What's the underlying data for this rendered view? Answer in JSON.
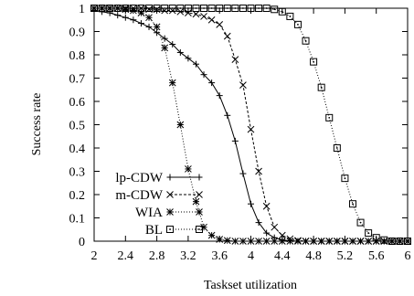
{
  "chart_data": {
    "type": "line",
    "xlabel": "Taskset utilization",
    "ylabel": "Success rate",
    "xlim": [
      2,
      6
    ],
    "ylim": [
      0,
      1
    ],
    "x_ticks": [
      "2",
      "2.4",
      "2.8",
      "3.2",
      "3.6",
      "4",
      "4.4",
      "4.8",
      "5.2",
      "5.6",
      "6"
    ],
    "y_ticks": [
      "0",
      "0.1",
      "0.2",
      "0.3",
      "0.4",
      "0.5",
      "0.6",
      "0.7",
      "0.8",
      "0.9",
      "1"
    ],
    "grid": false,
    "legend_position": "bottom-left",
    "series": [
      {
        "name": "lp-CDW",
        "marker": "plus",
        "dash": "solid",
        "x": [
          2.0,
          2.1,
          2.2,
          2.3,
          2.4,
          2.5,
          2.6,
          2.7,
          2.8,
          2.9,
          3.0,
          3.1,
          3.2,
          3.3,
          3.4,
          3.5,
          3.6,
          3.7,
          3.8,
          3.9,
          4.0,
          4.1,
          4.2,
          4.3,
          4.4,
          4.5,
          4.6,
          4.7,
          4.8,
          4.9,
          5.0,
          5.1,
          5.2,
          5.3,
          5.4,
          5.5,
          5.6,
          5.7,
          5.8,
          5.9,
          6.0
        ],
        "values": [
          0.99,
          0.985,
          0.98,
          0.97,
          0.96,
          0.95,
          0.935,
          0.92,
          0.895,
          0.87,
          0.845,
          0.81,
          0.785,
          0.76,
          0.715,
          0.68,
          0.625,
          0.54,
          0.43,
          0.29,
          0.16,
          0.08,
          0.035,
          0.015,
          0.005,
          0.002,
          0,
          0,
          0,
          0,
          0,
          0,
          0,
          0,
          0,
          0,
          0,
          0,
          0,
          0,
          0
        ]
      },
      {
        "name": "m-CDW",
        "marker": "cross",
        "dash": "dashed",
        "x": [
          2.0,
          2.1,
          2.2,
          2.3,
          2.4,
          2.5,
          2.6,
          2.7,
          2.8,
          2.9,
          3.0,
          3.1,
          3.2,
          3.3,
          3.4,
          3.5,
          3.6,
          3.7,
          3.8,
          3.9,
          4.0,
          4.1,
          4.2,
          4.3,
          4.4,
          4.5,
          4.6,
          4.7,
          4.8,
          4.9,
          5.0,
          5.1,
          5.2,
          5.3,
          5.4,
          5.5,
          5.6,
          5.7,
          5.8,
          5.9,
          6.0
        ],
        "values": [
          1,
          1,
          1,
          1,
          1,
          1,
          1,
          0.995,
          0.995,
          0.99,
          0.99,
          0.985,
          0.98,
          0.975,
          0.965,
          0.95,
          0.93,
          0.88,
          0.78,
          0.67,
          0.48,
          0.3,
          0.15,
          0.06,
          0.025,
          0.01,
          0.003,
          0,
          0,
          0,
          0,
          0,
          0,
          0,
          0,
          0,
          0,
          0,
          0,
          0,
          0
        ]
      },
      {
        "name": "WIA",
        "marker": "star",
        "dash": "dotted",
        "x": [
          2.0,
          2.1,
          2.2,
          2.3,
          2.4,
          2.5,
          2.6,
          2.7,
          2.8,
          2.9,
          3.0,
          3.1,
          3.2,
          3.3,
          3.4,
          3.5,
          3.6,
          3.7,
          3.8,
          3.9,
          4.0,
          4.1,
          4.2,
          4.3,
          4.4,
          4.5,
          4.6,
          4.7,
          4.8,
          4.9,
          5.0,
          5.1,
          5.2,
          5.3,
          5.4,
          5.5,
          5.6,
          5.7,
          5.8,
          5.9,
          6.0
        ],
        "values": [
          1,
          1,
          1,
          1,
          0.995,
          0.99,
          0.98,
          0.96,
          0.92,
          0.83,
          0.68,
          0.5,
          0.31,
          0.17,
          0.06,
          0.025,
          0.008,
          0.003,
          0,
          0,
          0,
          0,
          0,
          0,
          0,
          0,
          0,
          0,
          0,
          0,
          0,
          0,
          0,
          0,
          0,
          0,
          0,
          0,
          0,
          0,
          0
        ]
      },
      {
        "name": "BL",
        "marker": "boxdot",
        "dash": "dotted",
        "x": [
          2.0,
          2.1,
          2.2,
          2.3,
          2.4,
          2.5,
          2.6,
          2.7,
          2.8,
          2.9,
          3.0,
          3.1,
          3.2,
          3.3,
          3.4,
          3.5,
          3.6,
          3.7,
          3.8,
          3.9,
          4.0,
          4.1,
          4.2,
          4.3,
          4.4,
          4.5,
          4.6,
          4.7,
          4.8,
          4.9,
          5.0,
          5.1,
          5.2,
          5.3,
          5.4,
          5.5,
          5.6,
          5.7,
          5.8,
          5.9,
          6.0
        ],
        "values": [
          1,
          1,
          1,
          1,
          1,
          1,
          1,
          1,
          1,
          1,
          1,
          1,
          1,
          1,
          1,
          1,
          1,
          1,
          1,
          1,
          1,
          1,
          1,
          0.995,
          0.985,
          0.965,
          0.93,
          0.86,
          0.77,
          0.66,
          0.53,
          0.4,
          0.27,
          0.16,
          0.08,
          0.035,
          0.015,
          0.005,
          0,
          0,
          0
        ]
      }
    ]
  }
}
